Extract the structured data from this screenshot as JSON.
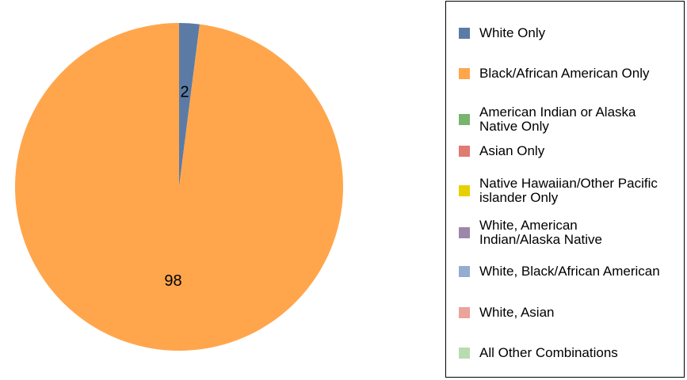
{
  "chart_data": {
    "type": "pie",
    "categories": [
      "White Only",
      "Black/African American Only",
      "American Indian or Alaska Native Only",
      "Asian Only",
      "Native Hawaiian/Other Pacific islander Only",
      "White, American Indian/Alaska Native",
      "White, Black/African American",
      "White, Asian",
      "All Other Combinations"
    ],
    "values": [
      2,
      98,
      0,
      0,
      0,
      0,
      0,
      0,
      0
    ],
    "colors": [
      "#5b7ba6",
      "#ffa64d",
      "#78b46e",
      "#e07b72",
      "#e8d000",
      "#9c88a8",
      "#94acd0",
      "#eba39a",
      "#b8dcb0"
    ],
    "legend": "right"
  }
}
